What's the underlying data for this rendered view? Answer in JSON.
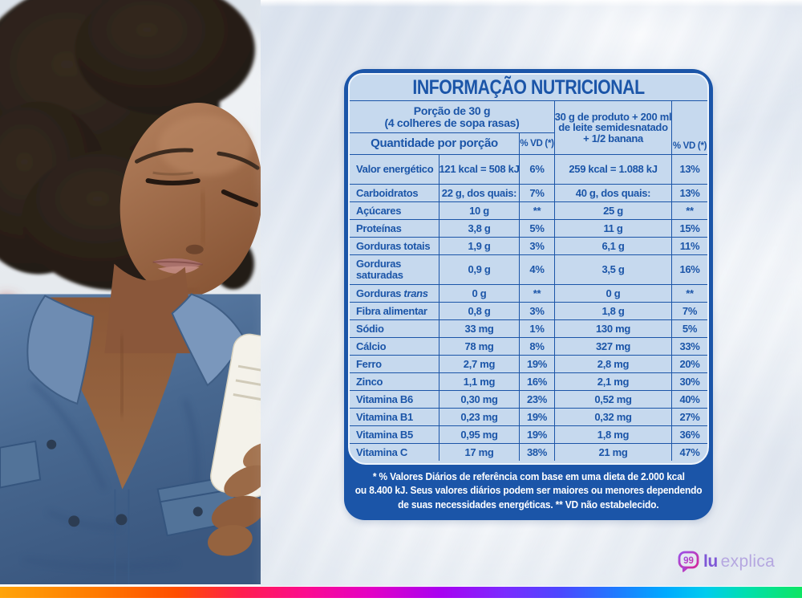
{
  "label": {
    "title": "INFORMAÇÃO NUTRICIONAL",
    "header": {
      "portion_line1": "Porção de 30 g",
      "portion_line2": "(4 colheres de sopa rasas)",
      "quantity": "Quantidade por porção",
      "vd": "% VD (*)",
      "combo_lines": [
        "30 g de produto + 200 ml",
        "de leite semidesnatado",
        "+ 1/2 banana"
      ]
    },
    "rows": [
      {
        "name": "Valor energético",
        "v1": "121 kcal = 508 kJ",
        "vd1": "6%",
        "v2": "259 kcal = 1.088 kJ",
        "vd2": "13%",
        "tall": true
      },
      {
        "name": "Carboidratos",
        "v1": "22 g, dos quais:",
        "vd1": "7%",
        "v2": "40 g, dos quais:",
        "vd2": "13%"
      },
      {
        "name": "Açúcares",
        "v1": "10 g",
        "vd1": "**",
        "v2": "25 g",
        "vd2": "**"
      },
      {
        "name": "Proteínas",
        "v1": "3,8 g",
        "vd1": "5%",
        "v2": "11 g",
        "vd2": "15%"
      },
      {
        "name": "Gorduras totais",
        "v1": "1,9 g",
        "vd1": "3%",
        "v2": "6,1 g",
        "vd2": "11%"
      },
      {
        "name": "Gorduras saturadas",
        "v1": "0,9 g",
        "vd1": "4%",
        "v2": "3,5 g",
        "vd2": "16%",
        "tall": true
      },
      {
        "name": "Gorduras",
        "italic": "trans",
        "v1": "0 g",
        "vd1": "**",
        "v2": "0 g",
        "vd2": "**"
      },
      {
        "name": "Fibra alimentar",
        "v1": "0,8 g",
        "vd1": "3%",
        "v2": "1,8 g",
        "vd2": "7%"
      },
      {
        "name": "Sódio",
        "v1": "33 mg",
        "vd1": "1%",
        "v2": "130 mg",
        "vd2": "5%"
      },
      {
        "name": "Cálcio",
        "v1": "78 mg",
        "vd1": "8%",
        "v2": "327 mg",
        "vd2": "33%"
      },
      {
        "name": "Ferro",
        "v1": "2,7 mg",
        "vd1": "19%",
        "v2": "2,8 mg",
        "vd2": "20%"
      },
      {
        "name": "Zinco",
        "v1": "1,1 mg",
        "vd1": "16%",
        "v2": "2,1 mg",
        "vd2": "30%"
      },
      {
        "name": "Vitamina B6",
        "v1": "0,30 mg",
        "vd1": "23%",
        "v2": "0,52 mg",
        "vd2": "40%"
      },
      {
        "name": "Vitamina B1",
        "v1": "0,23 mg",
        "vd1": "19%",
        "v2": "0,32 mg",
        "vd2": "27%"
      },
      {
        "name": "Vitamina B5",
        "v1": "0,95 mg",
        "vd1": "19%",
        "v2": "1,8 mg",
        "vd2": "36%"
      },
      {
        "name": "Vitamina C",
        "v1": "17 mg",
        "vd1": "38%",
        "v2": "21 mg",
        "vd2": "47%"
      }
    ],
    "footnote_lines": [
      "* % Valores Diários de referência com base em uma dieta de 2.000 kcal",
      "ou 8.400 kJ. Seus valores diários podem ser maiores ou menores dependendo",
      "de suas necessidades energéticas. ** VD não estabelecido."
    ]
  },
  "branding": {
    "lu": "lu",
    "explica": "explica",
    "icon_glyph": "99"
  },
  "colors": {
    "table-blue": "#1b55a8",
    "panel-blue": "#c6d9ee",
    "brand-purple": "#7e57d6",
    "brand-lavender": "#b5a7e0"
  }
}
